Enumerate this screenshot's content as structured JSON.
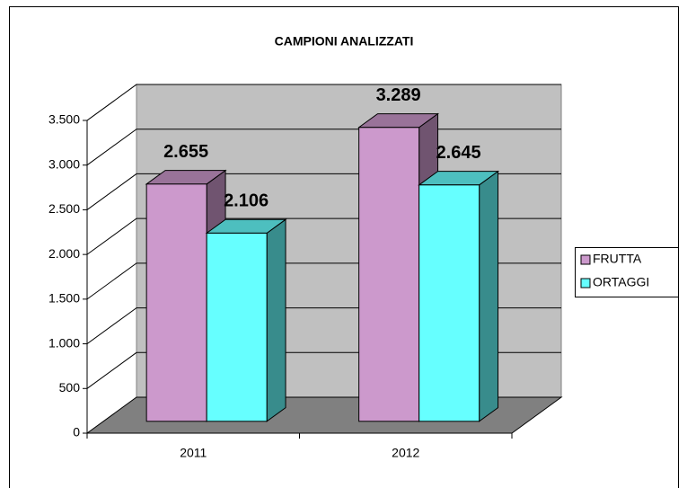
{
  "chart_data": {
    "type": "bar3d",
    "title": "CAMPIONI ANALIZZATI",
    "categories": [
      "2011",
      "2012"
    ],
    "series": [
      {
        "name": "FRUTTA",
        "color": "#cc99cc",
        "values": [
          2655,
          3289
        ],
        "value_labels": [
          "2.655",
          "3.289"
        ]
      },
      {
        "name": "ORTAGGI",
        "color": "#66ffff",
        "values": [
          2106,
          2645
        ],
        "value_labels": [
          "2.106",
          "2.645"
        ]
      }
    ],
    "ylim": [
      0,
      3500
    ],
    "yticks": [
      0,
      500,
      {
        "value": 1000,
        "label": "1.000"
      },
      {
        "value": 1500,
        "label": "1.500"
      },
      {
        "value": 2000,
        "label": "2.000"
      },
      {
        "value": 2500,
        "label": "2.500"
      },
      {
        "value": 3000,
        "label": "3.000"
      },
      {
        "value": 3500,
        "label": "3.500"
      }
    ],
    "grid": true,
    "legend": "right"
  }
}
